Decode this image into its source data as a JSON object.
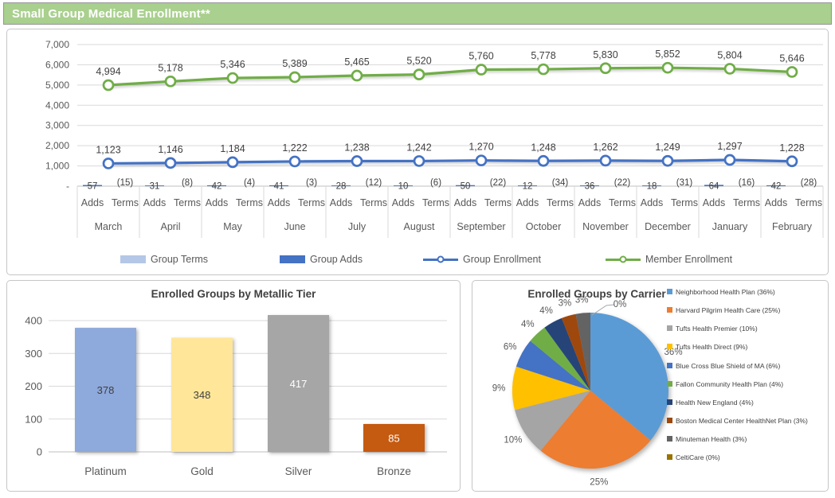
{
  "header": {
    "title": "Small Group Medical Enrollment**",
    "bg": "#A9D08E"
  },
  "colors": {
    "grid": "#D9D9D9",
    "baseline": "#BFBFBF",
    "axis_text": "#595959",
    "label_text": "#404040",
    "group_blue": "#4472C4",
    "member_green": "#70AD47",
    "terms_lightblue": "#B4C7E7"
  },
  "chart_data": [
    {
      "type": "line",
      "title": "",
      "categories": [
        "March",
        "April",
        "May",
        "June",
        "July",
        "August",
        "September",
        "October",
        "November",
        "December",
        "January",
        "February"
      ],
      "sub_labels": [
        "Adds",
        "Terms"
      ],
      "y_ticks": [
        "7,000",
        "6,000",
        "5,000",
        "4,000",
        "3,000",
        "2,000",
        "1,000",
        "-"
      ],
      "ylim": [
        0,
        7000
      ],
      "grid": true,
      "legend_position": "bottom",
      "series": [
        {
          "name": "Group Terms",
          "type": "bar",
          "color": "#B4C7E7",
          "values": [
            -15,
            -8,
            -4,
            -3,
            -12,
            -6,
            -22,
            -34,
            -22,
            -31,
            -16,
            -28
          ],
          "labels": [
            "(15)",
            "(8)",
            "(4)",
            "(3)",
            "(12)",
            "(6)",
            "(22)",
            "(34)",
            "(22)",
            "(31)",
            "(16)",
            "(28)"
          ]
        },
        {
          "name": "Group Adds",
          "type": "bar",
          "color": "#4472C4",
          "values": [
            57,
            31,
            42,
            41,
            28,
            10,
            50,
            12,
            36,
            18,
            64,
            42
          ],
          "labels": [
            "57",
            "31",
            "42",
            "41",
            "28",
            "10",
            "50",
            "12",
            "36",
            "18",
            "64",
            "42"
          ]
        },
        {
          "name": "Group Enrollment",
          "type": "line",
          "color": "#4472C4",
          "values": [
            1123,
            1146,
            1184,
            1222,
            1238,
            1242,
            1270,
            1248,
            1262,
            1249,
            1297,
            1228
          ],
          "labels": [
            "1,123",
            "1,146",
            "1,184",
            "1,222",
            "1,238",
            "1,242",
            "1,270",
            "1,248",
            "1,262",
            "1,249",
            "1,297",
            "1,228"
          ]
        },
        {
          "name": "Member Enrollment",
          "type": "line",
          "color": "#70AD47",
          "values": [
            4994,
            5178,
            5346,
            5389,
            5465,
            5520,
            5760,
            5778,
            5830,
            5852,
            5804,
            5646
          ],
          "labels": [
            "4,994",
            "5,178",
            "5,346",
            "5,389",
            "5,465",
            "5,520",
            "5,760",
            "5,778",
            "5,830",
            "5,852",
            "5,804",
            "5,646"
          ]
        }
      ]
    },
    {
      "type": "bar",
      "title": "Enrolled Groups by Metallic Tier",
      "categories": [
        "Platinum",
        "Gold",
        "Silver",
        "Bronze"
      ],
      "values": [
        378,
        348,
        417,
        85
      ],
      "value_labels": [
        "378",
        "348",
        "417",
        "85"
      ],
      "colors": [
        "#8EA9DB",
        "#FFE699",
        "#A6A6A6",
        "#C55A11"
      ],
      "label_colors": [
        "#404040",
        "#404040",
        "#FFFFFF",
        "#FFFFFF"
      ],
      "y_ticks": [
        "0",
        "100",
        "200",
        "300",
        "400"
      ],
      "ylim": [
        0,
        400
      ],
      "grid": true
    },
    {
      "type": "pie",
      "title": "Enrolled Groups by Carrier",
      "legend_position": "right",
      "slices": [
        {
          "label": "Neighborhood Health Plan",
          "pct": 36,
          "color": "#5B9BD5",
          "legend_label": "Neighborhood Health Plan (36%)"
        },
        {
          "label": "Harvard Pilgrim Health Care",
          "pct": 25,
          "color": "#ED7D31",
          "legend_label": "Harvard Pilgrim Health Care (25%)"
        },
        {
          "label": "Tufts Health Premier",
          "pct": 10,
          "color": "#A5A5A5",
          "legend_label": "Tufts Health Premier (10%)"
        },
        {
          "label": "Tufts Health Direct",
          "pct": 9,
          "color": "#FFC000",
          "legend_label": "Tufts Health Direct (9%)"
        },
        {
          "label": "Blue Cross Blue Shield of MA",
          "pct": 6,
          "color": "#4472C4",
          "legend_label": "Blue Cross Blue Shield of MA (6%)"
        },
        {
          "label": "Fallon Community Health Plan",
          "pct": 4,
          "color": "#70AD47",
          "legend_label": "Fallon Community Health Plan (4%)"
        },
        {
          "label": "Health New England",
          "pct": 4,
          "color": "#264478",
          "legend_label": "Health New England (4%)"
        },
        {
          "label": "Boston Medical Center HealthNet Plan",
          "pct": 3,
          "color": "#9E480E",
          "legend_label": "Boston Medical Center HealthNet Plan (3%)"
        },
        {
          "label": "Minuteman Health",
          "pct": 3,
          "color": "#636363",
          "legend_label": "Minuteman Health (3%)"
        },
        {
          "label": "CeltiCare",
          "pct": 0,
          "color": "#997300",
          "legend_label": "CeltiCare (0%)"
        }
      ]
    }
  ]
}
